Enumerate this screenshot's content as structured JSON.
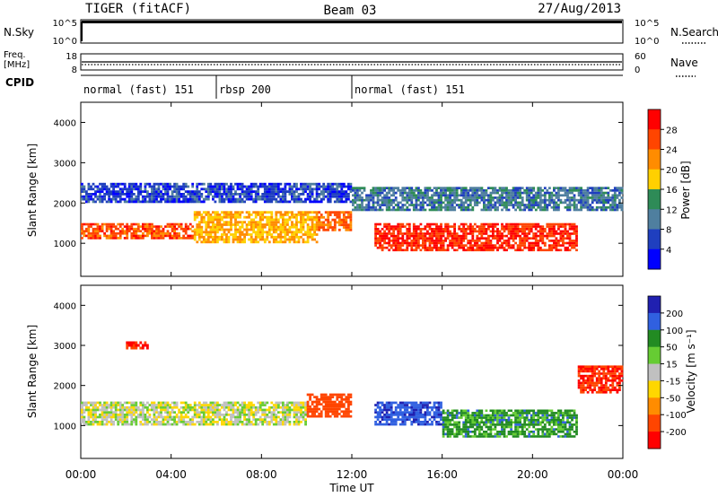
{
  "header": {
    "title": "TIGER (fitACF)",
    "beam": "Beam 03",
    "date": "27/Aug/2013"
  },
  "aux_panels": {
    "nsky_label": "N.Sky",
    "nsky_ticks": [
      "10^5",
      "10^0"
    ],
    "nsearch_label": "N.Search",
    "nsearch_ticks": [
      "10^5",
      "10^0"
    ],
    "freq_label_1": "Freq.",
    "freq_label_2": "[MHz]",
    "freq_ticks": [
      "18",
      "8"
    ],
    "nave_label": "Nave",
    "nave_ticks": [
      "60",
      "0"
    ],
    "cpid_label": "CPID",
    "cpid_segments": [
      {
        "label": "normal (fast) 151",
        "start_h": 0,
        "end_h": 6
      },
      {
        "label": "rbsp 200",
        "start_h": 6,
        "end_h": 12
      },
      {
        "label": "normal (fast) 151",
        "start_h": 12,
        "end_h": 24
      }
    ]
  },
  "x_axis": {
    "label": "Time UT",
    "ticks": [
      "00:00",
      "04:00",
      "08:00",
      "12:00",
      "16:00",
      "20:00",
      "00:00"
    ],
    "tick_hours": [
      0,
      4,
      8,
      12,
      16,
      20,
      24
    ]
  },
  "power_colorbar": {
    "label": "Power [dB]",
    "ticks": [
      "28",
      "24",
      "20",
      "16",
      "12",
      "8",
      "4"
    ],
    "colors": [
      "#ff0000",
      "#ff4500",
      "#ff8c00",
      "#ffd000",
      "#2e8b57",
      "#4f7f9f",
      "#1f3fbf",
      "#0000ff"
    ]
  },
  "velocity_colorbar": {
    "label": "Velocity [m s⁻¹]",
    "ticks": [
      "200",
      "100",
      "50",
      "15",
      "-15",
      "-50",
      "-100",
      "-200"
    ],
    "colors": [
      "#2020b0",
      "#3060e0",
      "#228b22",
      "#66cc33",
      "#c0c0c0",
      "#ffd700",
      "#ff8c00",
      "#ff4500",
      "#ff0000"
    ]
  },
  "chart_data": [
    {
      "type": "heatmap",
      "title": "",
      "xlabel": "Time UT",
      "ylabel": "Slant Range [km]",
      "xlim": [
        0,
        24
      ],
      "ylim": [
        180,
        4500
      ],
      "y_ticks": [
        1000,
        2000,
        3000,
        4000
      ],
      "colorbar": "Power [dB]",
      "features": [
        {
          "t0": 0,
          "t1": 5,
          "r0": 1100,
          "r1": 1500,
          "value": 26
        },
        {
          "t0": 5,
          "t1": 10.5,
          "r0": 1000,
          "r1": 1800,
          "value": 20
        },
        {
          "t0": 10.5,
          "t1": 12,
          "r0": 1300,
          "r1": 1800,
          "value": 24
        },
        {
          "t0": 13,
          "t1": 22,
          "r0": 800,
          "r1": 1500,
          "value": 28
        },
        {
          "t0": 0,
          "t1": 12,
          "r0": 2000,
          "r1": 2500,
          "value": 6
        },
        {
          "t0": 12,
          "t1": 24,
          "r0": 1800,
          "r1": 2400,
          "value": 10
        }
      ]
    },
    {
      "type": "heatmap",
      "title": "",
      "xlabel": "Time UT",
      "ylabel": "Slant Range [km]",
      "xlim": [
        0,
        24
      ],
      "ylim": [
        180,
        4500
      ],
      "y_ticks": [
        1000,
        2000,
        3000,
        4000
      ],
      "colorbar": "Velocity [m s⁻¹]",
      "features": [
        {
          "t0": 0,
          "t1": 10,
          "r0": 1000,
          "r1": 1600,
          "value": 0
        },
        {
          "t0": 10,
          "t1": 12,
          "r0": 1200,
          "r1": 1800,
          "value": -150
        },
        {
          "t0": 13,
          "t1": 16,
          "r0": 1000,
          "r1": 1600,
          "value": 180
        },
        {
          "t0": 16,
          "t1": 22,
          "r0": 700,
          "r1": 1400,
          "value": 70
        },
        {
          "t0": 22,
          "t1": 24,
          "r0": 1800,
          "r1": 2500,
          "value": -200
        },
        {
          "t0": 2,
          "t1": 3,
          "r0": 2900,
          "r1": 3100,
          "value": -200
        }
      ]
    }
  ]
}
